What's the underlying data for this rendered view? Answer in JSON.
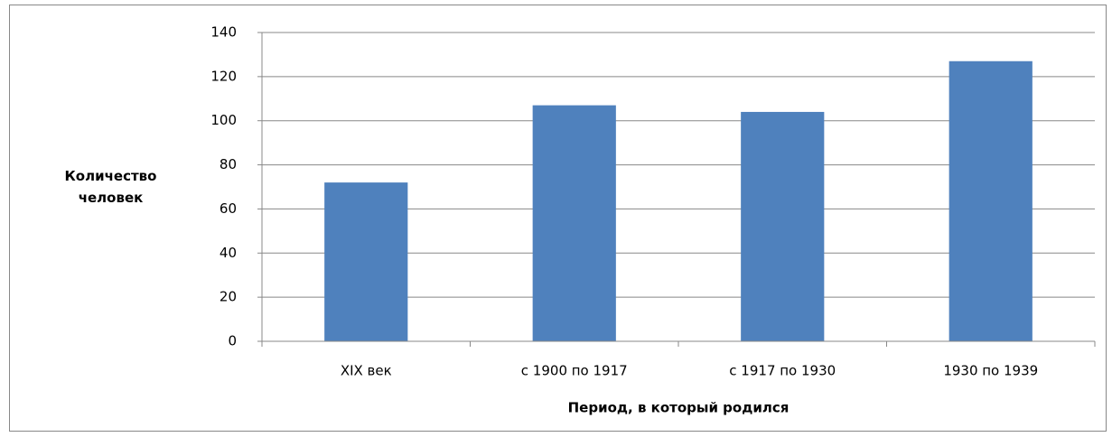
{
  "chart_data": {
    "type": "bar",
    "categories": [
      "XIX век",
      "с 1900 по 1917",
      "с 1917 по 1930",
      "1930 по 1939"
    ],
    "values": [
      72,
      107,
      104,
      127
    ],
    "color": "#4f81bd",
    "ylim": [
      0,
      140
    ],
    "yticks": [
      0,
      20,
      40,
      60,
      80,
      100,
      120,
      140
    ],
    "grid": true,
    "ylabel": "Количество человек",
    "xlabel": "Период, в который родился"
  }
}
